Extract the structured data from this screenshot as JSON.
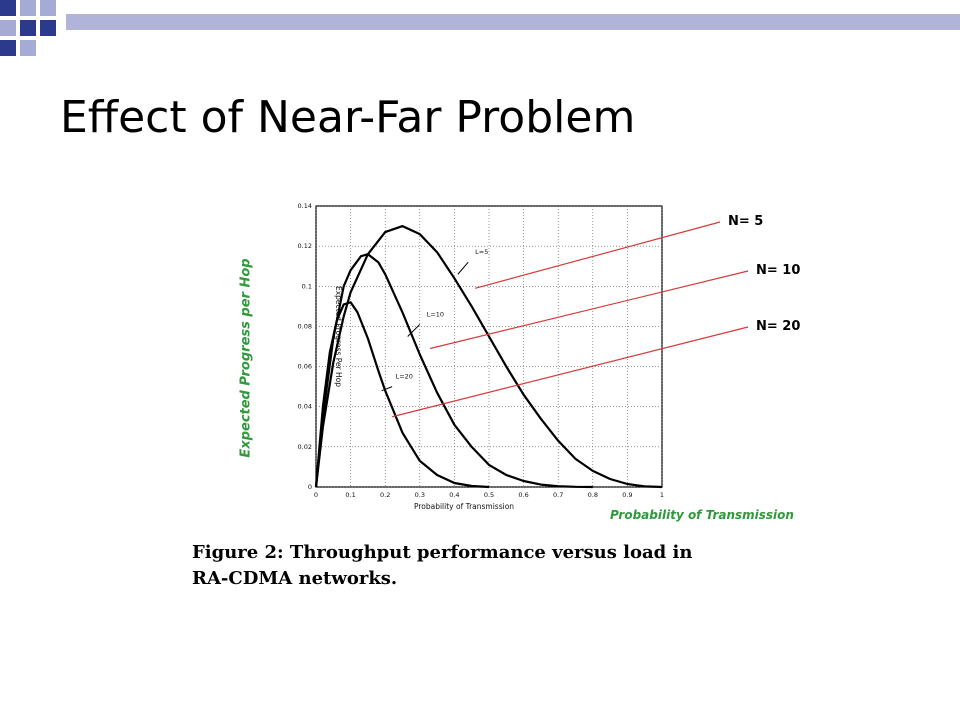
{
  "slide": {
    "title": "Effect of Near-Far Problem",
    "overlay_ylabel": "Expected Progress per Hop",
    "overlay_xlabel": "Probability of Transmission",
    "caption_line1": "Figure 2:  Throughput performance versus load in",
    "caption_line2": "RA-CDMA networks.",
    "accent_colors": {
      "squares_dark": "#2b3a8c",
      "squares_light": "#a6abd6",
      "bar": "#b0b4d8",
      "green_text": "#2e9a3a",
      "pointer_line": "#d63a3a"
    }
  },
  "callouts": [
    {
      "label": "N= 5",
      "target_series": "L=5"
    },
    {
      "label": "N= 10",
      "target_series": "L=10"
    },
    {
      "label": "N= 20",
      "target_series": "L=20"
    }
  ],
  "chart_data": {
    "type": "line",
    "xlabel": "Probability of Transmission",
    "ylabel": "Expected Progress Per Hop",
    "xlim": [
      0,
      1
    ],
    "ylim": [
      0,
      0.14
    ],
    "x_ticks": [
      "0",
      "0.1",
      "0.2",
      "0.3",
      "0.4",
      "0.5",
      "0.6",
      "0.7",
      "0.8",
      "0.9",
      "1"
    ],
    "y_ticks": [
      "0",
      "0.02",
      "0.04",
      "0.06",
      "0.08",
      "0.1",
      "0.12",
      "0.14"
    ],
    "grid": true,
    "series": [
      {
        "name": "L=5",
        "x": [
          0,
          0.02,
          0.05,
          0.08,
          0.1,
          0.15,
          0.2,
          0.25,
          0.3,
          0.35,
          0.4,
          0.45,
          0.5,
          0.55,
          0.6,
          0.65,
          0.7,
          0.75,
          0.8,
          0.85,
          0.9,
          0.95,
          1.0
        ],
        "values": [
          0,
          0.03,
          0.062,
          0.085,
          0.097,
          0.116,
          0.127,
          0.13,
          0.126,
          0.117,
          0.104,
          0.09,
          0.075,
          0.06,
          0.046,
          0.034,
          0.023,
          0.014,
          0.008,
          0.004,
          0.0015,
          0.0003,
          0
        ]
      },
      {
        "name": "L=10",
        "x": [
          0,
          0.02,
          0.05,
          0.08,
          0.1,
          0.13,
          0.15,
          0.18,
          0.2,
          0.25,
          0.3,
          0.35,
          0.4,
          0.45,
          0.5,
          0.55,
          0.6,
          0.65,
          0.7,
          0.75,
          0.8
        ],
        "values": [
          0,
          0.035,
          0.074,
          0.1,
          0.108,
          0.115,
          0.116,
          0.112,
          0.106,
          0.087,
          0.066,
          0.047,
          0.031,
          0.02,
          0.011,
          0.006,
          0.003,
          0.0012,
          0.0004,
          0.0001,
          0
        ]
      },
      {
        "name": "L=20",
        "x": [
          0,
          0.02,
          0.04,
          0.06,
          0.08,
          0.1,
          0.12,
          0.15,
          0.18,
          0.2,
          0.25,
          0.3,
          0.35,
          0.4,
          0.45,
          0.5
        ],
        "values": [
          0,
          0.04,
          0.067,
          0.083,
          0.091,
          0.092,
          0.087,
          0.074,
          0.058,
          0.048,
          0.027,
          0.013,
          0.006,
          0.002,
          0.0005,
          0
        ]
      }
    ]
  }
}
